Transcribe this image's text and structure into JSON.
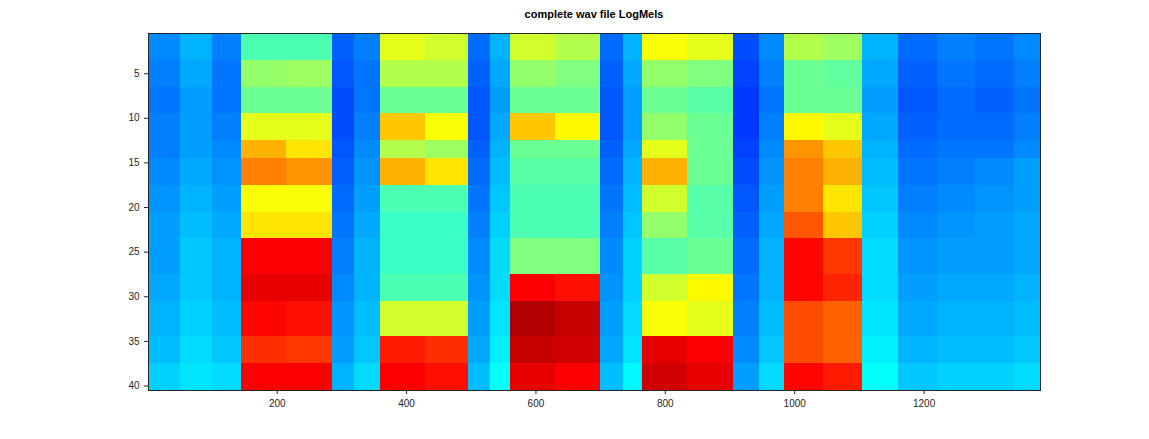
{
  "chart_data": {
    "type": "heatmap",
    "title": "complete wav file LogMels",
    "xlim": [
      1,
      1380
    ],
    "ylim": [
      0.5,
      40.5
    ],
    "xticks": [
      200,
      400,
      600,
      800,
      1000,
      1200
    ],
    "yticks": [
      5,
      10,
      15,
      20,
      25,
      30,
      35,
      40
    ],
    "clim": [
      0,
      10
    ],
    "x_edges": [
      1,
      50,
      100,
      145,
      215,
      285,
      320,
      360,
      430,
      495,
      530,
      560,
      630,
      700,
      735,
      765,
      835,
      905,
      945,
      985,
      1045,
      1105,
      1160,
      1220,
      1280,
      1340,
      1380
    ],
    "y_edges": [
      0.5,
      3.5,
      6.5,
      9.5,
      12.5,
      14.5,
      17.5,
      20.5,
      23.5,
      27.5,
      30.5,
      34.5,
      37.5,
      40.5
    ],
    "cells": [
      [
        2.6,
        3.0,
        2.5,
        4.5,
        4.5,
        2.2,
        2.5,
        6.0,
        5.8,
        2.3,
        3.0,
        5.8,
        5.5,
        2.3,
        3.0,
        6.2,
        6.0,
        2.0,
        2.6,
        5.5,
        5.3,
        3.0,
        2.3,
        2.5,
        2.4,
        2.6
      ],
      [
        2.5,
        2.9,
        2.4,
        5.2,
        5.3,
        2.1,
        2.4,
        5.5,
        5.5,
        2.2,
        2.9,
        5.2,
        5.0,
        2.2,
        2.9,
        5.2,
        5.0,
        1.9,
        2.5,
        4.8,
        4.7,
        2.9,
        2.2,
        2.4,
        2.3,
        2.5
      ],
      [
        2.4,
        2.8,
        2.4,
        4.8,
        4.8,
        2.0,
        2.4,
        4.8,
        4.8,
        2.1,
        2.8,
        4.8,
        4.8,
        2.1,
        2.8,
        4.8,
        4.6,
        1.8,
        2.4,
        4.8,
        4.8,
        2.8,
        2.1,
        2.3,
        2.2,
        2.4
      ],
      [
        2.5,
        2.8,
        2.5,
        6.0,
        6.0,
        2.0,
        2.5,
        6.8,
        6.2,
        2.1,
        2.9,
        6.8,
        6.3,
        2.1,
        2.8,
        5.2,
        4.8,
        1.8,
        2.5,
        6.3,
        6.0,
        2.9,
        2.2,
        2.3,
        2.3,
        2.5
      ],
      [
        2.5,
        2.8,
        2.6,
        7.0,
        6.5,
        2.1,
        2.6,
        5.5,
        5.3,
        2.2,
        3.0,
        4.8,
        4.8,
        2.2,
        2.9,
        6.0,
        4.8,
        1.9,
        2.6,
        7.3,
        6.8,
        3.0,
        2.3,
        2.4,
        2.4,
        2.6
      ],
      [
        2.6,
        2.9,
        2.7,
        7.5,
        7.3,
        2.2,
        2.7,
        7.0,
        6.5,
        2.3,
        3.1,
        4.6,
        4.6,
        2.3,
        3.0,
        7.0,
        4.8,
        2.0,
        2.7,
        7.5,
        7.0,
        3.1,
        2.4,
        2.5,
        2.6,
        2.8
      ],
      [
        2.7,
        3.0,
        2.8,
        6.2,
        6.2,
        2.3,
        2.8,
        4.5,
        4.5,
        2.4,
        3.2,
        4.5,
        4.5,
        2.4,
        3.1,
        5.8,
        4.6,
        2.1,
        2.8,
        7.5,
        6.5,
        3.2,
        2.5,
        2.6,
        2.7,
        2.8
      ],
      [
        2.8,
        3.1,
        2.9,
        6.5,
        6.5,
        2.4,
        2.9,
        4.3,
        4.3,
        2.5,
        3.3,
        4.5,
        4.5,
        2.5,
        3.2,
        5.2,
        4.6,
        2.2,
        2.9,
        7.9,
        6.8,
        3.3,
        2.6,
        2.7,
        2.8,
        2.9
      ],
      [
        2.8,
        3.2,
        3.0,
        8.8,
        8.8,
        2.5,
        3.0,
        4.3,
        4.3,
        2.6,
        3.4,
        5.0,
        5.0,
        2.6,
        3.3,
        4.6,
        4.8,
        2.3,
        3.0,
        8.7,
        8.2,
        3.4,
        2.7,
        2.8,
        2.8,
        2.9
      ],
      [
        2.9,
        3.2,
        3.0,
        9.0,
        9.0,
        2.6,
        3.0,
        4.5,
        4.5,
        2.7,
        3.4,
        8.8,
        8.6,
        2.7,
        3.3,
        5.8,
        6.3,
        2.4,
        3.0,
        8.7,
        8.4,
        3.4,
        2.8,
        2.9,
        2.9,
        3.0
      ],
      [
        3.0,
        3.3,
        3.1,
        8.7,
        8.6,
        2.7,
        3.1,
        5.8,
        5.8,
        2.8,
        3.5,
        9.5,
        9.3,
        2.8,
        3.4,
        6.2,
        6.0,
        2.5,
        3.1,
        8.0,
        7.8,
        3.5,
        2.9,
        3.0,
        3.0,
        3.1
      ],
      [
        3.1,
        3.4,
        3.2,
        8.3,
        8.2,
        2.8,
        3.2,
        8.5,
        8.3,
        2.9,
        3.6,
        9.3,
        9.2,
        2.9,
        3.5,
        9.0,
        8.8,
        2.6,
        3.2,
        8.0,
        7.8,
        3.6,
        3.0,
        3.1,
        3.1,
        3.2
      ],
      [
        3.3,
        3.5,
        3.4,
        8.8,
        8.8,
        3.0,
        3.4,
        8.8,
        8.6,
        3.1,
        3.8,
        9.0,
        8.8,
        3.1,
        3.7,
        9.2,
        9.0,
        2.8,
        3.4,
        8.7,
        8.5,
        3.8,
        3.2,
        3.3,
        3.3,
        3.4
      ]
    ]
  }
}
